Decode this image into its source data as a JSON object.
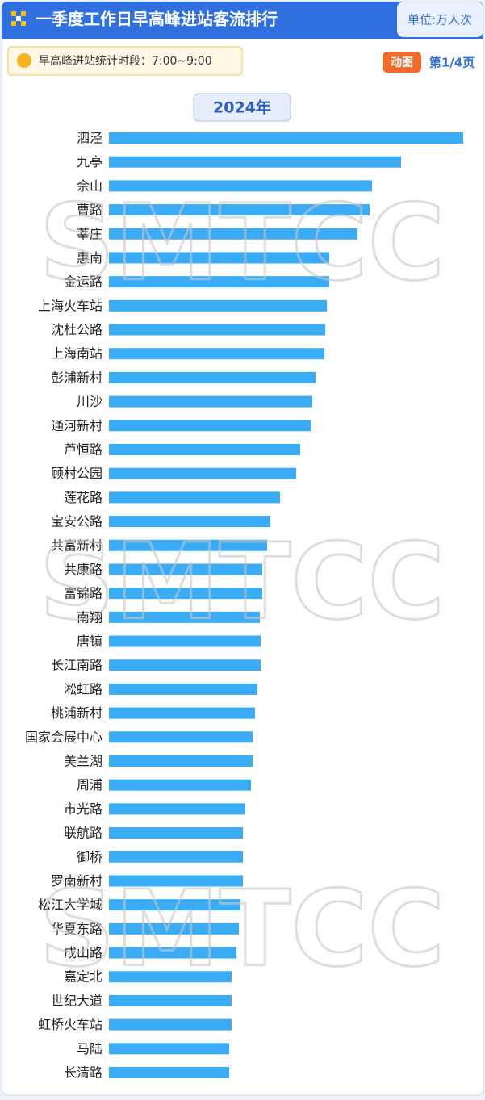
{
  "chart_data": {
    "type": "barh",
    "title": "一季度工作日早高峰进站客流排行",
    "unit_label": "单位:万人次",
    "subtitle": "早高峰进站统计时段：7:00~9:00",
    "badge": "动图",
    "page_label": "第1/4页",
    "year_label": "2024年",
    "watermark": "SMTCC",
    "color": "#3aabf5",
    "xlim": [
      0,
      4.5
    ],
    "categories": [
      "泗泾",
      "九亭",
      "佘山",
      "曹路",
      "莘庄",
      "惠南",
      "金运路",
      "上海火车站",
      "沈杜公路",
      "上海南站",
      "彭浦新村",
      "川沙",
      "通河新村",
      "芦恒路",
      "顾村公园",
      "莲花路",
      "宝安公路",
      "共富新村",
      "共康路",
      "富锦路",
      "南翔",
      "唐镇",
      "长江南路",
      "淞虹路",
      "桃浦新村",
      "国家会展中心",
      "美兰湖",
      "周浦",
      "市光路",
      "联航路",
      "御桥",
      "罗南新村",
      "松江大学城",
      "华夏东路",
      "成山路",
      "嘉定北",
      "世纪大道",
      "虹桥火车站",
      "马陆",
      "长清路"
    ],
    "values": [
      4.39,
      3.62,
      3.26,
      3.23,
      3.08,
      2.73,
      2.73,
      2.7,
      2.68,
      2.67,
      2.56,
      2.52,
      2.5,
      2.37,
      2.32,
      2.12,
      2.0,
      1.96,
      1.9,
      1.9,
      1.87,
      1.88,
      1.88,
      1.84,
      1.81,
      1.78,
      1.78,
      1.76,
      1.69,
      1.66,
      1.66,
      1.66,
      1.63,
      1.61,
      1.58,
      1.52,
      1.52,
      1.52,
      1.49,
      1.49
    ]
  }
}
